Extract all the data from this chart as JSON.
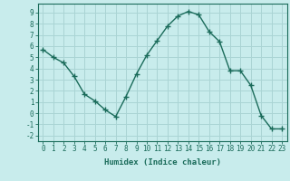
{
  "x": [
    0,
    1,
    2,
    3,
    4,
    5,
    6,
    7,
    8,
    9,
    10,
    11,
    12,
    13,
    14,
    15,
    16,
    17,
    18,
    19,
    20,
    21,
    22,
    23
  ],
  "y": [
    5.7,
    5.0,
    4.5,
    3.3,
    1.7,
    1.1,
    0.3,
    -0.3,
    1.5,
    3.5,
    5.2,
    6.5,
    7.8,
    8.7,
    9.1,
    8.8,
    7.3,
    6.4,
    3.8,
    3.8,
    2.5,
    -0.2,
    -1.4,
    -1.4
  ],
  "line_color": "#1a6b5a",
  "marker": "+",
  "marker_size": 4,
  "bg_color": "#c8ecec",
  "grid_color": "#aad4d4",
  "axis_color": "#1a6b5a",
  "tick_color": "#1a6b5a",
  "xlabel": "Humidex (Indice chaleur)",
  "ylim": [
    -2.5,
    9.8
  ],
  "xlim": [
    -0.5,
    23.5
  ],
  "yticks": [
    -2,
    -1,
    0,
    1,
    2,
    3,
    4,
    5,
    6,
    7,
    8,
    9
  ],
  "xticks": [
    0,
    1,
    2,
    3,
    4,
    5,
    6,
    7,
    8,
    9,
    10,
    11,
    12,
    13,
    14,
    15,
    16,
    17,
    18,
    19,
    20,
    21,
    22,
    23
  ],
  "label_fontsize": 5.5,
  "xlabel_fontsize": 6.5
}
